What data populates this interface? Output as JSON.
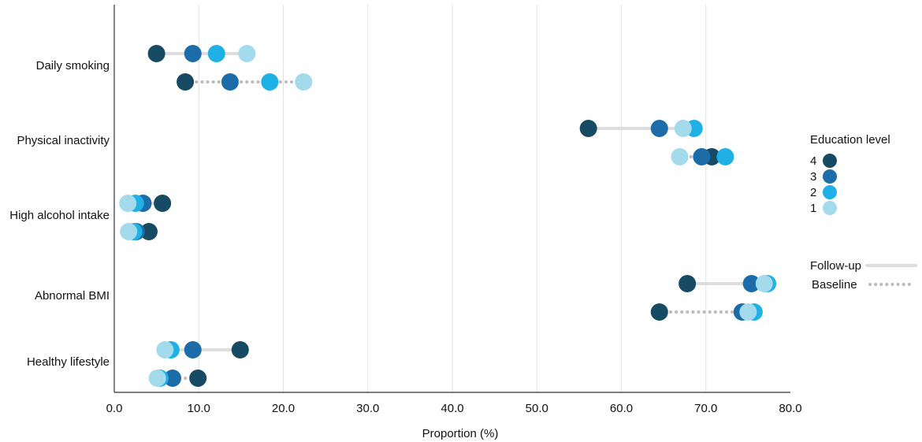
{
  "chart_data": {
    "type": "dumbbell",
    "xlabel": "Proportion (%)",
    "xlim": [
      0,
      80
    ],
    "x_ticks": [
      "0.0",
      "10.0",
      "20.0",
      "30.0",
      "40.0",
      "50.0",
      "60.0",
      "70.0",
      "80.0"
    ],
    "x_tick_values": [
      0,
      10,
      20,
      30,
      40,
      50,
      60,
      70,
      80
    ],
    "grid": "vertical",
    "legend_title": "Education level",
    "legend_position": "right",
    "levels": [
      "4",
      "3",
      "2",
      "1"
    ],
    "level_colors": {
      "4": "#174a63",
      "3": "#1b6ca8",
      "2": "#1fb0e6",
      "1": "#a3dbec"
    },
    "period_labels": {
      "followup": "Follow-up",
      "baseline": "Baseline"
    },
    "line_colors": {
      "followup": "#dddddd",
      "baseline": "#bbbbbb"
    },
    "categories": [
      {
        "label": "Daily smoking",
        "followup": {
          "4": 5.0,
          "3": 9.3,
          "2": 12.1,
          "1": 15.7
        },
        "baseline": {
          "4": 8.4,
          "3": 13.7,
          "2": 18.4,
          "1": 22.4
        }
      },
      {
        "label": "Physical inactivity",
        "followup": {
          "4": 56.1,
          "3": 64.5,
          "2": 68.6,
          "1": 67.3
        },
        "baseline": {
          "4": 70.7,
          "3": 69.5,
          "2": 72.3,
          "1": 66.9
        }
      },
      {
        "label": "High alcohol intake",
        "followup": {
          "4": 5.7,
          "3": 3.4,
          "2": 2.5,
          "1": 1.6
        },
        "baseline": {
          "4": 4.1,
          "3": 2.6,
          "2": 2.3,
          "1": 1.7
        }
      },
      {
        "label": "Abnormal BMI",
        "followup": {
          "4": 67.8,
          "3": 75.4,
          "2": 77.3,
          "1": 76.9
        },
        "baseline": {
          "4": 64.5,
          "3": 74.3,
          "2": 75.7,
          "1": 75.0
        }
      },
      {
        "label": "Healthy lifestyle",
        "followup": {
          "4": 14.9,
          "3": 9.3,
          "2": 6.7,
          "1": 6.0
        },
        "baseline": {
          "4": 9.9,
          "3": 6.9,
          "2": 5.4,
          "1": 5.1
        }
      }
    ]
  }
}
